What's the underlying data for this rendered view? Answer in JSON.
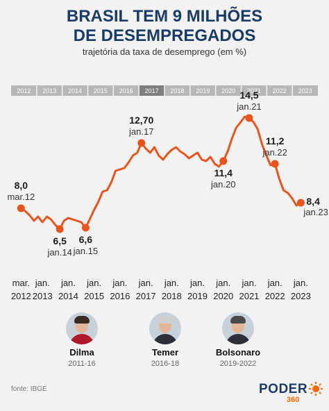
{
  "title_line1": "BRASIL TEM 9 MILHÕES",
  "title_line2": "DE DESEMPREGADOS",
  "subtitle": "trajetória da taxa de desemprego (em %)",
  "source": "fonte: IBGE",
  "logo": {
    "word": "PODER",
    "sub": "360"
  },
  "colors": {
    "line": "#e8541c",
    "title": "#1a3b66",
    "year_strip": "#b7b7b7",
    "highlight_year": "#7e7e7e",
    "background": "#f2f2f2"
  },
  "leaders": [
    {
      "name": "Dilma",
      "years": "2011-16",
      "icon": "portrait-dilma",
      "hair": "#3a2b22"
    },
    {
      "name": "Temer",
      "years": "2016-18",
      "icon": "portrait-temer",
      "hair": "#cfcfcf"
    },
    {
      "name": "Bolsonaro",
      "years": "2019-2022",
      "icon": "portrait-bolsonaro",
      "hair": "#4a4a4a"
    }
  ],
  "chart_data": {
    "type": "line",
    "title": "BRASIL TEM 9 MILHÕES DE DESEMPREGADOS",
    "subtitle": "trajetória da taxa de desemprego (em %)",
    "year_strip": [
      "2012",
      "2013",
      "2014",
      "2015",
      "2016",
      "2017",
      "2018",
      "2019",
      "2020",
      "2021",
      "2022",
      "2023"
    ],
    "highlight_year": "2017",
    "x_tick_labels": [
      [
        "mar.",
        "2012"
      ],
      [
        "jan.",
        "2013"
      ],
      [
        "jan.",
        "2014"
      ],
      [
        "jan.",
        "2015"
      ],
      [
        "jan.",
        "2016"
      ],
      [
        "jan.",
        "2017"
      ],
      [
        "jan.",
        "2018"
      ],
      [
        "jan.",
        "2019"
      ],
      [
        "jan.",
        "2020"
      ],
      [
        "jan.",
        "2021"
      ],
      [
        "jan.",
        "2022"
      ],
      [
        "jan.",
        "2023"
      ]
    ],
    "x_tick_dates": [
      2012.17,
      2013.0,
      2014.0,
      2015.0,
      2016.0,
      2017.0,
      2018.0,
      2019.0,
      2020.0,
      2021.0,
      2022.0,
      2023.0
    ],
    "ylim": [
      5,
      16
    ],
    "series": [
      {
        "x": [
          2012.17,
          2012.33,
          2012.5,
          2012.67,
          2012.83,
          2013.0,
          2013.17,
          2013.33,
          2013.5,
          2013.67,
          2013.83,
          2014.0,
          2014.17,
          2014.33,
          2014.5,
          2014.67,
          2014.83,
          2015.0,
          2015.17,
          2015.33,
          2015.5,
          2015.67,
          2015.83,
          2016.0,
          2016.17,
          2016.33,
          2016.5,
          2016.67,
          2016.83,
          2017.0,
          2017.17,
          2017.33,
          2017.5,
          2017.67,
          2017.83,
          2018.0,
          2018.17,
          2018.33,
          2018.5,
          2018.67,
          2018.83,
          2019.0,
          2019.17,
          2019.33,
          2019.5,
          2019.67,
          2019.83,
          2020.0,
          2020.17,
          2020.33,
          2020.5,
          2020.67,
          2020.83,
          2021.0,
          2021.17,
          2021.33,
          2021.5,
          2021.67,
          2021.83,
          2022.0,
          2022.17,
          2022.33,
          2022.5,
          2022.67,
          2022.83,
          2023.0
        ],
        "y": [
          8.0,
          7.8,
          7.5,
          7.1,
          7.4,
          7.0,
          7.4,
          7.2,
          6.8,
          6.5,
          7.1,
          7.3,
          7.2,
          7.1,
          7.0,
          6.6,
          7.2,
          7.9,
          8.5,
          9.2,
          9.3,
          9.9,
          10.7,
          10.8,
          10.9,
          11.3,
          11.8,
          12.0,
          12.7,
          12.3,
          12.0,
          12.4,
          11.8,
          11.5,
          11.9,
          12.2,
          12.4,
          12.1,
          11.9,
          11.6,
          11.8,
          12.0,
          11.5,
          11.4,
          11.7,
          11.2,
          11.0,
          11.4,
          12.1,
          13.0,
          13.8,
          14.2,
          14.6,
          14.5,
          14.2,
          13.7,
          12.6,
          11.8,
          11.1,
          11.2,
          10.1,
          9.3,
          9.1,
          8.7,
          8.2,
          8.4
        ]
      }
    ],
    "annotations": [
      {
        "value": "8,0",
        "date": "mar.12",
        "x": 2012.17,
        "y": 8.0,
        "pos": "above"
      },
      {
        "value": "6,5",
        "date": "jan.14",
        "x": 2013.67,
        "y": 6.5,
        "pos": "below"
      },
      {
        "value": "6,6",
        "date": "jan.15",
        "x": 2014.67,
        "y": 6.6,
        "pos": "below"
      },
      {
        "value": "12,70",
        "date": "jan.17",
        "x": 2016.83,
        "y": 12.7,
        "pos": "above"
      },
      {
        "value": "11,4",
        "date": "jan.20",
        "x": 2020.0,
        "y": 11.4,
        "pos": "below"
      },
      {
        "value": "14,5",
        "date": "jan.21",
        "x": 2021.0,
        "y": 14.5,
        "pos": "above"
      },
      {
        "value": "11,2",
        "date": "jan.22",
        "x": 2022.0,
        "y": 11.2,
        "pos": "above"
      },
      {
        "value": "8,4",
        "date": "jan.23",
        "x": 2023.0,
        "y": 8.4,
        "pos": "right"
      }
    ],
    "grid": false,
    "legend": "none"
  }
}
